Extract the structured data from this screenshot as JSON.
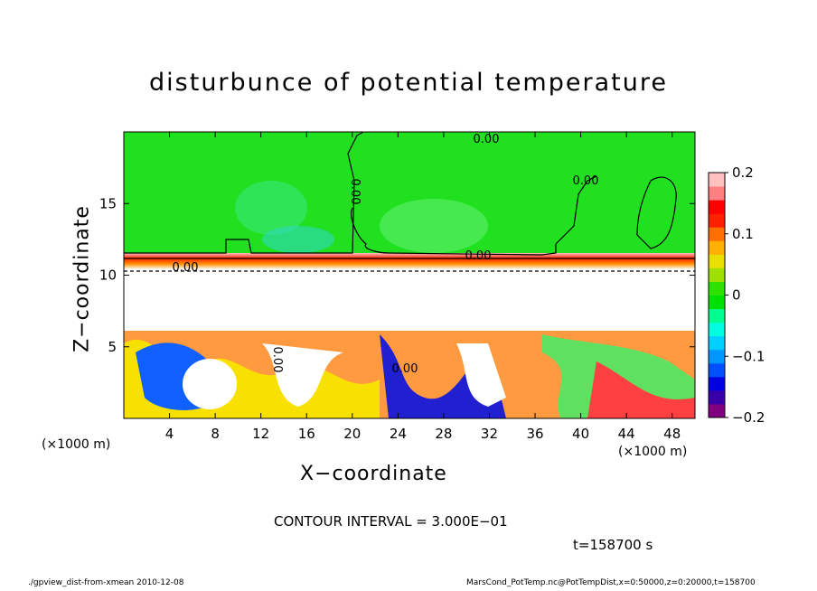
{
  "chart_data": {
    "type": "heatmap",
    "title": "disturbunce of potential temperature",
    "xlabel": "X−coordinate",
    "ylabel": "Z−coordinate",
    "x_unit": "(×1000 m)",
    "y_unit": "(×1000 m)",
    "xlim": [
      0,
      50
    ],
    "ylim": [
      0,
      20
    ],
    "x_ticks": [
      4,
      8,
      12,
      16,
      20,
      24,
      28,
      32,
      36,
      40,
      44,
      48
    ],
    "y_ticks": [
      5,
      10,
      15
    ],
    "colorbar": {
      "range": [
        -0.2,
        0.2
      ],
      "ticks": [
        0.2,
        0.1,
        0,
        -0.1,
        -0.2
      ],
      "tick_labels": [
        "0.2",
        "0.1",
        "0",
        "−0.1",
        "−0.2"
      ],
      "colors": [
        "#800080",
        "#3a00a8",
        "#0000e0",
        "#0050ff",
        "#0096ff",
        "#00d0ff",
        "#00ffe0",
        "#00ff90",
        "#00e000",
        "#30e000",
        "#a0e000",
        "#e8e000",
        "#ffb000",
        "#ff7000",
        "#ff2000",
        "#ff0000",
        "#ff8080",
        "#ffc0c0"
      ]
    },
    "contour_labels": [
      "0.00",
      "0.00",
      "0.00",
      "0.00",
      "0.00",
      "0.00",
      "0.00"
    ],
    "contour_interval": "CONTOUR INTERVAL = 3.000E−01"
  },
  "annotations": {
    "time": "t=158700 s",
    "footer_left": "./gpview_dist-from-xmean  2010-12-08",
    "footer_right": "MarsCond_PotTemp.nc@PotTempDist,x=0:50000,z=0:20000,t=158700"
  }
}
